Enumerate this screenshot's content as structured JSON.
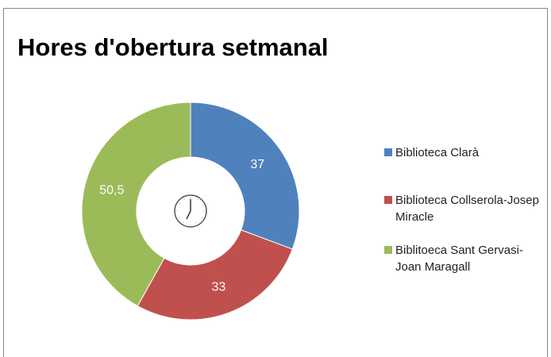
{
  "chart_data": {
    "type": "donut",
    "title": "Hores d'obertura setmanal",
    "categories": [
      "Biblioteca Clarà",
      "Biblioteca Collserola-Josep Miracle",
      "Biblitoeca Sant Gervasi-Joan Maragall"
    ],
    "values": [
      37,
      33,
      50.5
    ],
    "value_labels": [
      "37",
      "33",
      "50,5"
    ],
    "colors": [
      "#4f81bd",
      "#c0504d",
      "#9bbb59"
    ],
    "legend": "right"
  }
}
